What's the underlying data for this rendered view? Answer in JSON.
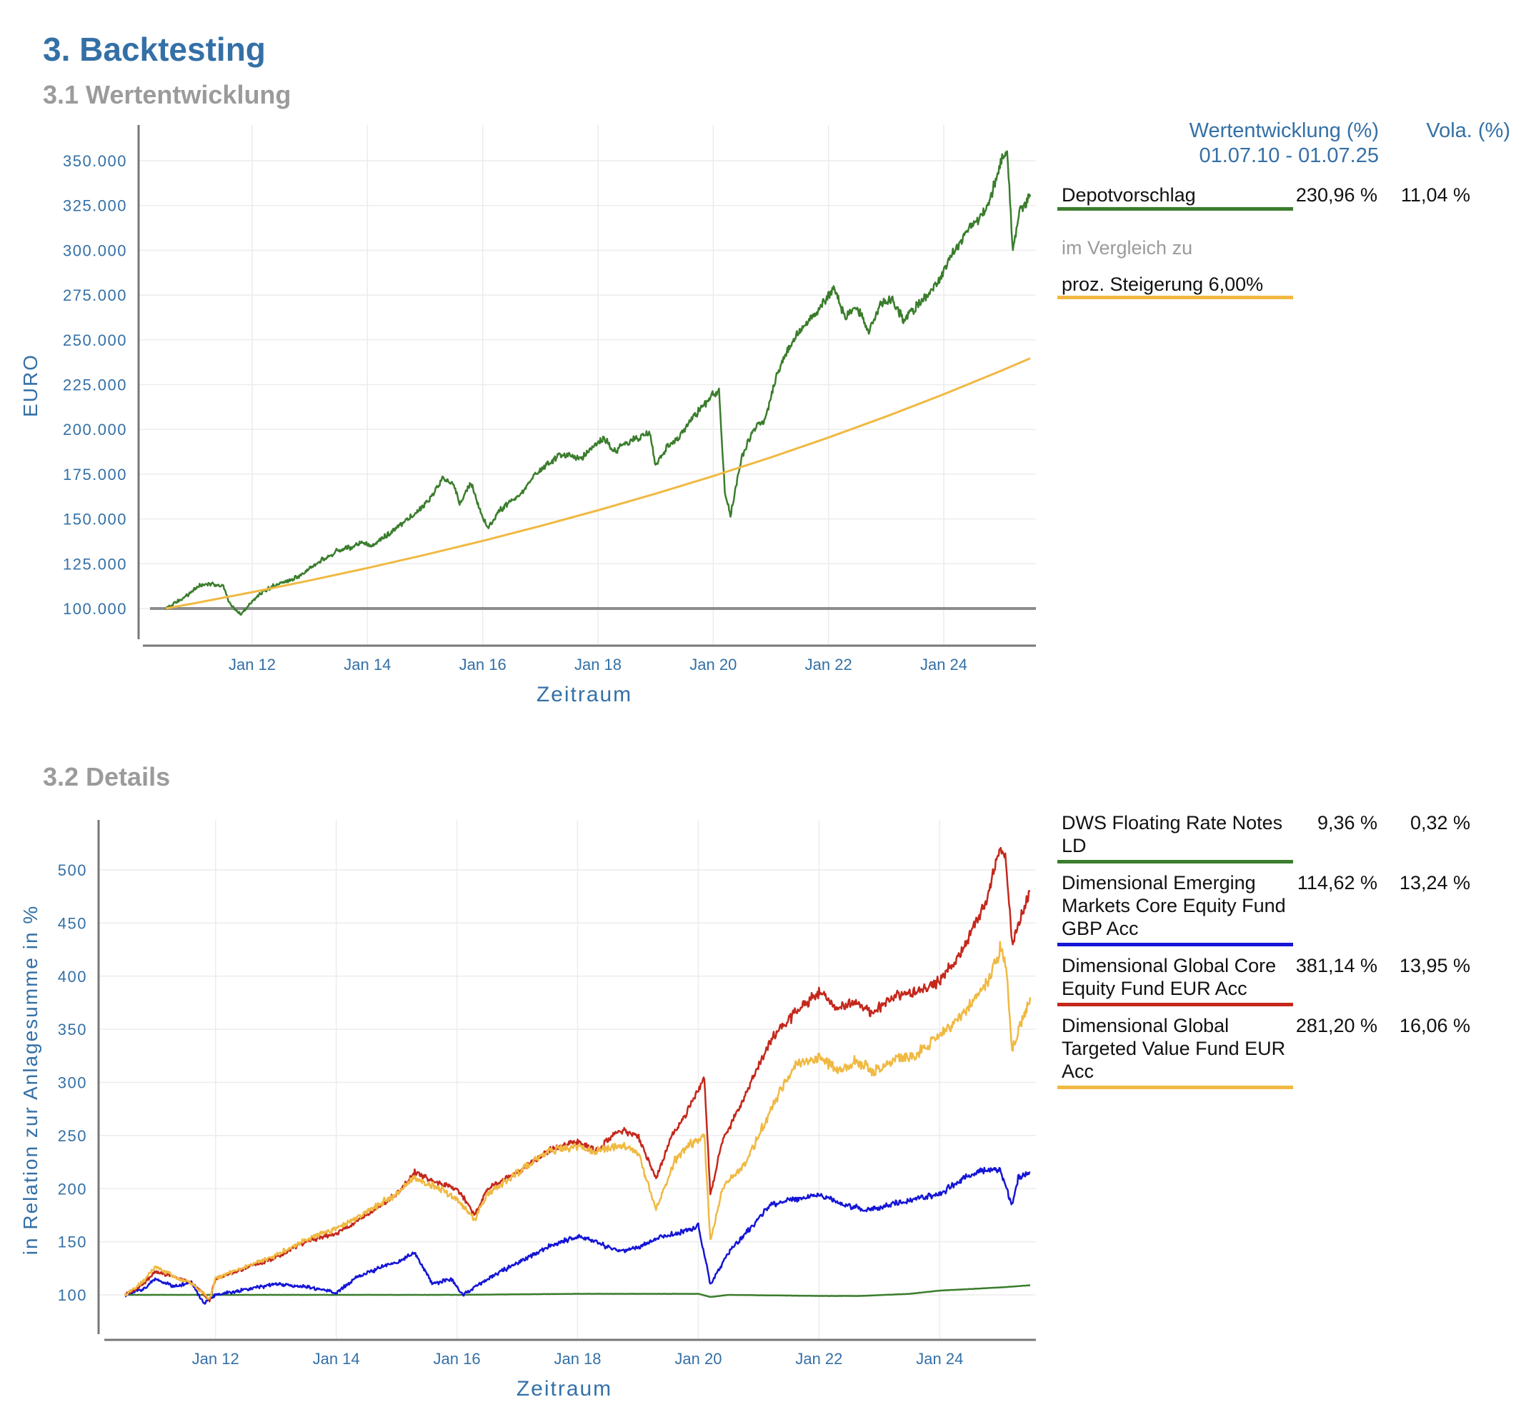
{
  "page": {
    "title": "3. Backtesting",
    "section1": "3.1 Wertentwicklung",
    "section2": "3.2 Details"
  },
  "legend_header": {
    "perf": "Wertentwicklung (%)",
    "period": "01.07.10 - 01.07.25",
    "vola": "Vola. (%)"
  },
  "legend1": {
    "compare_label": "im Vergleich zu",
    "entries": [
      {
        "name": "Depotvorschlag",
        "perf": "230,96 %",
        "vola": "11,04 %",
        "color": "#3a7d2c"
      },
      {
        "name": "proz. Steigerung 6,00%",
        "perf": "",
        "vola": "",
        "color": "#f0b942"
      }
    ]
  },
  "legend2": {
    "entries": [
      {
        "name": "DWS Floating Rate Notes LD",
        "perf": "9,36 %",
        "vola": "0,32 %",
        "color": "#3a7d2c"
      },
      {
        "name": "Dimensional Emerging Markets Core Equity Fund GBP Acc",
        "perf": "114,62 %",
        "vola": "13,24 %",
        "color": "#1515d6"
      },
      {
        "name": "Dimensional Global Core Equity Fund EUR Acc",
        "perf": "381,14 %",
        "vola": "13,95 %",
        "color": "#c4281c"
      },
      {
        "name": "Dimensional Global Targeted Value Fund EUR Acc",
        "perf": "281,20 %",
        "vola": "16,06 %",
        "color": "#f0b942"
      }
    ]
  },
  "chart_data": [
    {
      "type": "line",
      "xlabel": "Zeitraum",
      "ylabel": "EURO",
      "xlim": [
        2010.5,
        2025.5
      ],
      "ylim": [
        100000,
        355000
      ],
      "x_ticks": [
        {
          "x": 2012,
          "label": "Jan 12"
        },
        {
          "x": 2014,
          "label": "Jan 14"
        },
        {
          "x": 2016,
          "label": "Jan 16"
        },
        {
          "x": 2018,
          "label": "Jan 18"
        },
        {
          "x": 2020,
          "label": "Jan 20"
        },
        {
          "x": 2022,
          "label": "Jan 22"
        },
        {
          "x": 2024,
          "label": "Jan 24"
        }
      ],
      "y_ticks": [
        {
          "y": 100000,
          "label": "100.000"
        },
        {
          "y": 125000,
          "label": "125.000"
        },
        {
          "y": 150000,
          "label": "150.000"
        },
        {
          "y": 175000,
          "label": "175.000"
        },
        {
          "y": 200000,
          "label": "200.000"
        },
        {
          "y": 225000,
          "label": "225.000"
        },
        {
          "y": 250000,
          "label": "250.000"
        },
        {
          "y": 275000,
          "label": "275.000"
        },
        {
          "y": 300000,
          "label": "300.000"
        },
        {
          "y": 325000,
          "label": "325.000"
        },
        {
          "y": 350000,
          "label": "350.000"
        }
      ],
      "baseline": 100000,
      "grid": true,
      "series": [
        {
          "name": "Depotvorschlag",
          "color": "#3a7d2c",
          "x": [
            2010.5,
            2010.7,
            2010.9,
            2011.1,
            2011.3,
            2011.5,
            2011.6,
            2011.8,
            2011.9,
            2012.0,
            2012.2,
            2012.4,
            2012.6,
            2012.8,
            2013.0,
            2013.2,
            2013.4,
            2013.5,
            2013.7,
            2013.9,
            2014.1,
            2014.3,
            2014.5,
            2014.7,
            2014.9,
            2015.1,
            2015.3,
            2015.5,
            2015.6,
            2015.8,
            2016.0,
            2016.1,
            2016.3,
            2016.5,
            2016.7,
            2016.9,
            2017.1,
            2017.3,
            2017.5,
            2017.7,
            2017.9,
            2018.1,
            2018.3,
            2018.5,
            2018.7,
            2018.9,
            2019.0,
            2019.2,
            2019.4,
            2019.6,
            2019.8,
            2020.0,
            2020.1,
            2020.2,
            2020.3,
            2020.5,
            2020.7,
            2020.9,
            2021.1,
            2021.3,
            2021.5,
            2021.7,
            2021.9,
            2022.1,
            2022.3,
            2022.5,
            2022.7,
            2022.9,
            2023.1,
            2023.3,
            2023.5,
            2023.7,
            2023.9,
            2024.1,
            2024.3,
            2024.5,
            2024.7,
            2024.9,
            2025.0,
            2025.1,
            2025.2,
            2025.3,
            2025.5
          ],
          "y": [
            100000,
            104000,
            108000,
            113000,
            114000,
            112000,
            103000,
            97000,
            100000,
            104000,
            110000,
            113000,
            115000,
            118000,
            122000,
            127000,
            130000,
            133000,
            134000,
            137000,
            135000,
            140000,
            145000,
            150000,
            155000,
            162000,
            172000,
            170000,
            158000,
            170000,
            150000,
            145000,
            155000,
            160000,
            165000,
            175000,
            180000,
            185000,
            186000,
            183000,
            190000,
            195000,
            188000,
            193000,
            195000,
            198000,
            180000,
            190000,
            195000,
            205000,
            212000,
            220000,
            222000,
            165000,
            152000,
            185000,
            200000,
            205000,
            230000,
            245000,
            255000,
            262000,
            270000,
            278000,
            262000,
            268000,
            255000,
            270000,
            272000,
            262000,
            268000,
            275000,
            282000,
            296000,
            305000,
            315000,
            320000,
            338000,
            350000,
            355000,
            298000,
            320000,
            330000
          ]
        },
        {
          "name": "proz. Steigerung 6,00%",
          "color": "#f0b942",
          "x": [
            2010.5,
            2011.0,
            2012.0,
            2013.0,
            2014.0,
            2015.0,
            2016.0,
            2017.0,
            2018.0,
            2019.0,
            2020.0,
            2021.0,
            2022.0,
            2023.0,
            2024.0,
            2025.0,
            2025.5
          ],
          "y": [
            100000,
            102956,
            109134,
            115682,
            122623,
            129980,
            137779,
            146046,
            154808,
            164097,
            173943,
            184379,
            195442,
            207169,
            219599,
            232775,
            239656
          ]
        }
      ]
    },
    {
      "type": "line",
      "xlabel": "Zeitraum",
      "ylabel": "in Relation zur Anlagesumme in %",
      "xlim": [
        2010.5,
        2025.5
      ],
      "ylim": [
        100,
        525
      ],
      "x_ticks": [
        {
          "x": 2012,
          "label": "Jan 12"
        },
        {
          "x": 2014,
          "label": "Jan 14"
        },
        {
          "x": 2016,
          "label": "Jan 16"
        },
        {
          "x": 2018,
          "label": "Jan 18"
        },
        {
          "x": 2020,
          "label": "Jan 20"
        },
        {
          "x": 2022,
          "label": "Jan 22"
        },
        {
          "x": 2024,
          "label": "Jan 24"
        }
      ],
      "y_ticks": [
        {
          "y": 100,
          "label": "100"
        },
        {
          "y": 150,
          "label": "150"
        },
        {
          "y": 200,
          "label": "200"
        },
        {
          "y": 250,
          "label": "250"
        },
        {
          "y": 300,
          "label": "300"
        },
        {
          "y": 350,
          "label": "350"
        },
        {
          "y": 400,
          "label": "400"
        },
        {
          "y": 450,
          "label": "450"
        },
        {
          "y": 500,
          "label": "500"
        }
      ],
      "grid": true,
      "series": [
        {
          "name": "DWS Floating Rate Notes LD",
          "color": "#3a7d2c",
          "x": [
            2010.5,
            2012.0,
            2014.0,
            2016.0,
            2018.0,
            2020.0,
            2020.2,
            2020.5,
            2022.0,
            2022.7,
            2023.5,
            2024.0,
            2025.0,
            2025.5
          ],
          "y": [
            100,
            100,
            100,
            100,
            101,
            101,
            98,
            100,
            99,
            99,
            101,
            104,
            107,
            109
          ]
        },
        {
          "name": "Dimensional Emerging Markets Core Equity Fund GBP Acc",
          "color": "#1515d6",
          "x": [
            2010.5,
            2010.8,
            2011.0,
            2011.3,
            2011.6,
            2011.8,
            2012.0,
            2012.5,
            2013.0,
            2013.5,
            2014.0,
            2014.3,
            2014.7,
            2015.0,
            2015.3,
            2015.6,
            2015.9,
            2016.1,
            2016.5,
            2017.0,
            2017.5,
            2018.0,
            2018.3,
            2018.7,
            2019.0,
            2019.4,
            2019.8,
            2020.0,
            2020.2,
            2020.5,
            2020.9,
            2021.2,
            2021.6,
            2022.0,
            2022.4,
            2022.8,
            2023.2,
            2023.6,
            2024.0,
            2024.4,
            2024.8,
            2025.0,
            2025.2,
            2025.3,
            2025.5
          ],
          "y": [
            100,
            105,
            115,
            108,
            112,
            92,
            100,
            105,
            110,
            108,
            102,
            115,
            125,
            130,
            140,
            110,
            115,
            100,
            115,
            130,
            145,
            155,
            150,
            140,
            145,
            155,
            160,
            165,
            110,
            140,
            165,
            185,
            190,
            195,
            185,
            180,
            185,
            190,
            195,
            210,
            218,
            218,
            185,
            210,
            215
          ]
        },
        {
          "name": "Dimensional Global Core Equity Fund EUR Acc",
          "color": "#c4281c",
          "x": [
            2010.5,
            2010.8,
            2011.0,
            2011.3,
            2011.6,
            2011.9,
            2012.0,
            2012.5,
            2013.0,
            2013.5,
            2014.0,
            2014.5,
            2015.0,
            2015.3,
            2015.7,
            2016.0,
            2016.3,
            2016.5,
            2017.0,
            2017.5,
            2018.0,
            2018.3,
            2018.7,
            2019.0,
            2019.3,
            2019.6,
            2019.8,
            2020.1,
            2020.2,
            2020.4,
            2020.8,
            2021.2,
            2021.6,
            2022.0,
            2022.3,
            2022.6,
            2022.9,
            2023.2,
            2023.6,
            2024.0,
            2024.4,
            2024.8,
            2025.0,
            2025.1,
            2025.2,
            2025.5
          ],
          "y": [
            100,
            110,
            122,
            117,
            112,
            95,
            115,
            125,
            135,
            150,
            158,
            175,
            195,
            215,
            205,
            200,
            175,
            200,
            215,
            235,
            245,
            235,
            255,
            250,
            210,
            255,
            270,
            305,
            195,
            245,
            290,
            340,
            365,
            385,
            370,
            375,
            365,
            380,
            385,
            395,
            425,
            475,
            520,
            510,
            430,
            480
          ]
        },
        {
          "name": "Dimensional Global Targeted Value Fund EUR Acc",
          "color": "#f0b942",
          "x": [
            2010.5,
            2010.8,
            2011.0,
            2011.3,
            2011.6,
            2011.9,
            2012.0,
            2012.5,
            2013.0,
            2013.5,
            2014.0,
            2014.5,
            2015.0,
            2015.3,
            2015.7,
            2016.0,
            2016.3,
            2016.5,
            2017.0,
            2017.5,
            2018.0,
            2018.3,
            2018.7,
            2019.0,
            2019.3,
            2019.6,
            2019.8,
            2020.1,
            2020.2,
            2020.4,
            2020.8,
            2021.2,
            2021.6,
            2022.0,
            2022.3,
            2022.6,
            2022.9,
            2023.2,
            2023.6,
            2024.0,
            2024.4,
            2024.8,
            2025.0,
            2025.1,
            2025.2,
            2025.5
          ],
          "y": [
            100,
            112,
            126,
            118,
            110,
            97,
            115,
            127,
            137,
            152,
            162,
            178,
            195,
            210,
            200,
            190,
            170,
            195,
            215,
            235,
            240,
            235,
            240,
            235,
            180,
            225,
            240,
            250,
            150,
            200,
            225,
            275,
            315,
            325,
            310,
            320,
            310,
            320,
            325,
            345,
            365,
            395,
            425,
            410,
            330,
            380
          ]
        }
      ]
    }
  ]
}
